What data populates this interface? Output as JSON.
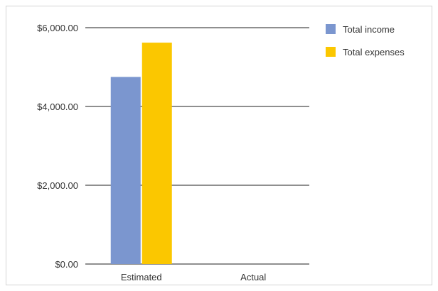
{
  "chart_data": {
    "type": "bar",
    "categories": [
      "Estimated",
      "Actual"
    ],
    "series": [
      {
        "name": "Total income",
        "color": "#7b96cf",
        "values": [
          4750,
          0
        ]
      },
      {
        "name": "Total expenses",
        "color": "#fbc700",
        "values": [
          5620,
          0
        ]
      }
    ],
    "ylim": [
      0,
      6000
    ],
    "yticks": [
      {
        "value": 0,
        "label": "$0.00"
      },
      {
        "value": 2000,
        "label": "$2,000.00"
      },
      {
        "value": 4000,
        "label": "$4,000.00"
      },
      {
        "value": 6000,
        "label": "$6,000.00"
      }
    ],
    "grid": true,
    "legend_position": "top-right",
    "title": "",
    "xlabel": "",
    "ylabel": ""
  }
}
